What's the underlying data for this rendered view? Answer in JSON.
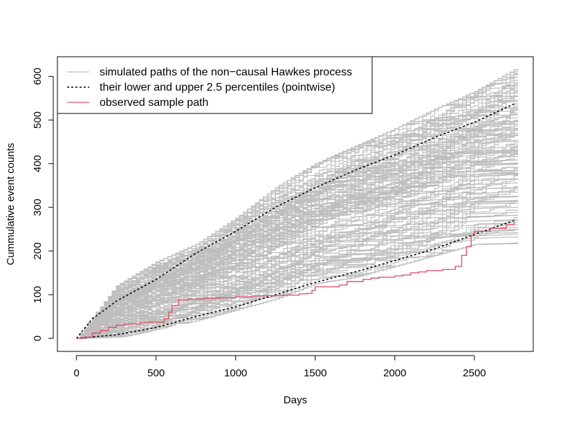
{
  "chart_data": {
    "type": "line",
    "title": "",
    "xlabel": "Days",
    "ylabel": "Cummulative event counts",
    "xlim": [
      -120,
      2870
    ],
    "ylim": [
      -30,
      645
    ],
    "x_ticks": [
      0,
      500,
      1000,
      1500,
      2000,
      2500
    ],
    "y_ticks": [
      0,
      100,
      200,
      300,
      400,
      500,
      600
    ],
    "x_tick_labels": [
      "0",
      "500",
      "1000",
      "1500",
      "2000",
      "2500"
    ],
    "y_tick_labels": [
      "0",
      "100",
      "200",
      "300",
      "400",
      "500",
      "600"
    ],
    "grid": false,
    "legend_position": "top-left",
    "legend": [
      {
        "label": "simulated paths of the non−causal Hawkes process",
        "color": "#bebebe",
        "dash": "solid"
      },
      {
        "label": "their lower and upper 2.5 percentiles (pointwise)",
        "color": "#000000",
        "dash": "dashed"
      },
      {
        "label": "observed sample path",
        "color": "#df536b",
        "dash": "solid"
      }
    ],
    "simulated_envelope": {
      "color": "#bebebe",
      "x": [
        0,
        250,
        500,
        750,
        1000,
        1250,
        1500,
        1750,
        2000,
        2250,
        2500,
        2750
      ],
      "upper": [
        0,
        120,
        175,
        215,
        275,
        345,
        400,
        440,
        480,
        525,
        565,
        615
      ],
      "lower": [
        0,
        0,
        20,
        40,
        65,
        90,
        125,
        140,
        165,
        190,
        215,
        195
      ]
    },
    "series": [
      {
        "name": "their lower and upper 2.5 percentiles (pointwise)",
        "bound": "upper",
        "color": "#000000",
        "style": "dashed",
        "x": [
          0,
          100,
          250,
          500,
          750,
          1000,
          1250,
          1500,
          1750,
          2000,
          2250,
          2500,
          2750
        ],
        "y": [
          0,
          45,
          85,
          135,
          195,
          245,
          300,
          345,
          385,
          420,
          460,
          495,
          537
        ]
      },
      {
        "name": "their lower and upper 2.5 percentiles (pointwise)",
        "bound": "lower",
        "color": "#000000",
        "style": "dashed",
        "x": [
          0,
          250,
          500,
          750,
          1000,
          1250,
          1500,
          1750,
          2000,
          2250,
          2500,
          2750
        ],
        "y": [
          0,
          8,
          25,
          50,
          72,
          100,
          128,
          152,
          178,
          205,
          238,
          270
        ]
      },
      {
        "name": "observed sample path",
        "color": "#df536b",
        "style": "solid",
        "x": [
          0,
          50,
          100,
          150,
          200,
          250,
          300,
          400,
          550,
          580,
          600,
          640,
          700,
          800,
          900,
          1000,
          1100,
          1200,
          1300,
          1400,
          1450,
          1480,
          1500,
          1650,
          1700,
          1800,
          1850,
          1900,
          2000,
          2050,
          2100,
          2150,
          2200,
          2300,
          2380,
          2420,
          2450,
          2480,
          2500,
          2600,
          2700,
          2750
        ],
        "y": [
          0,
          3,
          12,
          18,
          25,
          30,
          33,
          37,
          45,
          60,
          75,
          88,
          90,
          92,
          93,
          95,
          97,
          98,
          99,
          102,
          103,
          110,
          118,
          122,
          130,
          135,
          138,
          140,
          143,
          145,
          150,
          152,
          155,
          158,
          165,
          190,
          210,
          235,
          245,
          252,
          260,
          265
        ]
      }
    ]
  }
}
